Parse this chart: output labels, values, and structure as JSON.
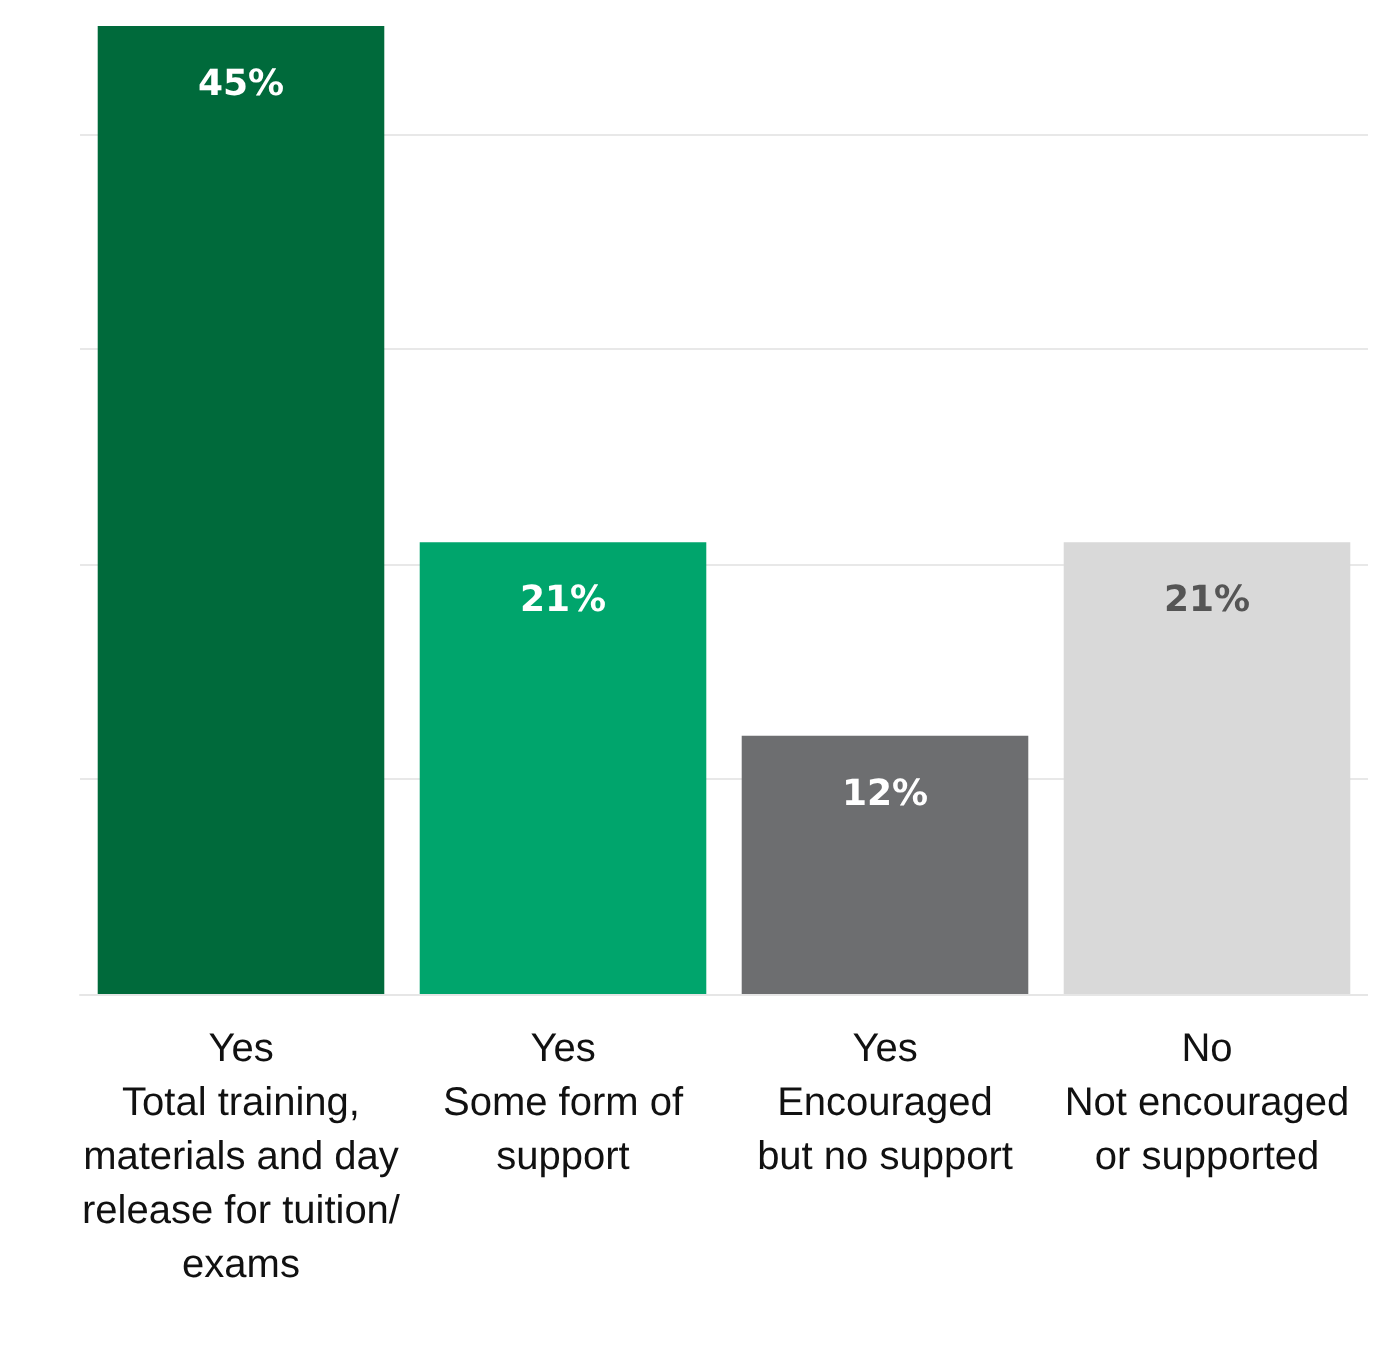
{
  "chart_data": {
    "type": "bar",
    "categories": [
      "Yes\nTotal training,\nmaterials and day\nrelease for tuition/\nexams",
      "Yes\nSome form of\nsupport",
      "Yes\nEncouraged\nbut no support",
      "No\nNot encouraged\nor supported"
    ],
    "values": [
      45,
      21,
      12,
      21
    ],
    "colors": [
      "#006a3b",
      "#00a56c",
      "#6d6e70",
      "#d9d9d9"
    ],
    "value_labels": [
      "45%",
      "21%",
      "12%",
      "21%"
    ],
    "ylim": [
      0,
      45
    ],
    "yticks": [
      {
        "value": 0,
        "label": null
      },
      {
        "value": 10,
        "label": null
      },
      {
        "value": 20,
        "label": null
      },
      {
        "value": 30,
        "label": null
      },
      {
        "value": 40,
        "label": null
      }
    ],
    "grid": "y",
    "tick_labels": "x"
  }
}
